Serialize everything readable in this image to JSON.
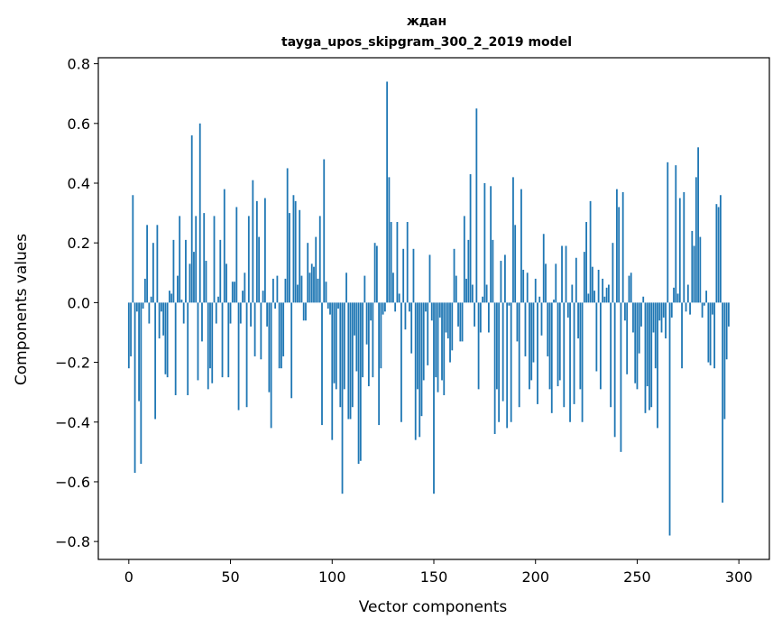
{
  "chart_data": {
    "type": "bar",
    "title": "ждан",
    "subtitle": "tayga_upos_skipgram_300_2_2019 model",
    "xlabel": "Vector components",
    "ylabel": "Components values",
    "xlim": [
      -15,
      315
    ],
    "ylim": [
      -0.86,
      0.82
    ],
    "xticks": [
      0,
      50,
      100,
      150,
      200,
      250,
      300
    ],
    "xtick_labels": [
      "0",
      "50",
      "100",
      "150",
      "200",
      "250",
      "300"
    ],
    "yticks": [
      -0.8,
      -0.6,
      -0.4,
      -0.2,
      0.0,
      0.2,
      0.4,
      0.6,
      0.8
    ],
    "ytick_labels": [
      "−0.8",
      "−0.6",
      "−0.4",
      "−0.2",
      "0.0",
      "0.2",
      "0.4",
      "0.6",
      "0.8"
    ],
    "bar_color": "#1f77b4",
    "series": [
      {
        "name": "ждан",
        "values": [
          -0.22,
          -0.18,
          0.36,
          -0.57,
          -0.03,
          -0.33,
          -0.54,
          -0.02,
          0.08,
          0.26,
          -0.07,
          0.02,
          0.2,
          -0.39,
          0.26,
          -0.12,
          -0.03,
          -0.11,
          -0.24,
          -0.25,
          0.04,
          0.03,
          0.21,
          -0.31,
          0.09,
          0.29,
          0.01,
          -0.07,
          0.21,
          -0.31,
          0.13,
          0.56,
          0.17,
          0.29,
          -0.26,
          0.6,
          -0.13,
          0.3,
          0.14,
          -0.29,
          -0.22,
          -0.27,
          0.29,
          -0.07,
          0.02,
          0.21,
          -0.25,
          0.38,
          0.13,
          -0.25,
          -0.07,
          0.07,
          0.07,
          0.32,
          -0.36,
          -0.07,
          0.04,
          0.1,
          -0.35,
          0.29,
          -0.08,
          0.41,
          -0.18,
          0.34,
          0.22,
          -0.19,
          0.04,
          0.35,
          -0.08,
          -0.3,
          -0.42,
          0.08,
          -0.02,
          0.09,
          -0.22,
          -0.22,
          -0.18,
          0.08,
          0.45,
          0.3,
          -0.32,
          0.36,
          0.34,
          0.06,
          0.31,
          0.09,
          -0.06,
          -0.06,
          0.2,
          0.1,
          0.13,
          0.12,
          0.22,
          0.08,
          0.29,
          -0.41,
          0.48,
          0.07,
          -0.02,
          -0.04,
          -0.46,
          -0.27,
          -0.29,
          -0.02,
          -0.35,
          -0.64,
          -0.29,
          0.1,
          -0.39,
          -0.39,
          -0.35,
          -0.11,
          -0.23,
          -0.54,
          -0.53,
          -0.25,
          0.09,
          -0.14,
          -0.28,
          -0.06,
          -0.25,
          0.2,
          0.19,
          -0.41,
          -0.22,
          -0.04,
          -0.03,
          0.74,
          0.42,
          0.27,
          0.1,
          -0.03,
          0.27,
          0.03,
          -0.4,
          0.18,
          -0.09,
          0.27,
          -0.03,
          -0.17,
          0.18,
          -0.46,
          -0.29,
          -0.45,
          -0.38,
          -0.26,
          -0.03,
          -0.21,
          0.16,
          -0.06,
          -0.64,
          -0.25,
          -0.3,
          -0.05,
          -0.26,
          -0.31,
          -0.1,
          -0.12,
          -0.2,
          -0.16,
          0.18,
          0.09,
          -0.08,
          -0.13,
          -0.13,
          0.29,
          0.08,
          0.21,
          0.43,
          0.06,
          -0.08,
          0.65,
          -0.29,
          -0.1,
          0.02,
          0.4,
          0.06,
          -0.1,
          0.39,
          0.21,
          -0.44,
          -0.29,
          -0.4,
          0.14,
          -0.33,
          0.16,
          -0.42,
          -0.01,
          -0.4,
          0.42,
          0.26,
          -0.13,
          -0.35,
          0.38,
          0.11,
          -0.18,
          0.1,
          -0.29,
          -0.26,
          -0.2,
          0.08,
          -0.34,
          0.02,
          -0.11,
          0.23,
          0.13,
          -0.18,
          -0.29,
          -0.37,
          0.01,
          0.13,
          -0.28,
          -0.26,
          0.19,
          -0.35,
          0.19,
          -0.05,
          -0.4,
          0.06,
          -0.34,
          0.15,
          -0.12,
          -0.29,
          -0.4,
          0.17,
          0.27,
          0.03,
          0.34,
          0.12,
          0.04,
          -0.23,
          0.11,
          -0.29,
          0.08,
          0.02,
          0.05,
          0.06,
          -0.35,
          0.2,
          -0.45,
          0.38,
          0.32,
          -0.5,
          0.37,
          -0.06,
          -0.24,
          0.09,
          0.1,
          -0.1,
          -0.27,
          -0.29,
          -0.17,
          -0.08,
          0.02,
          -0.37,
          -0.28,
          -0.36,
          -0.35,
          -0.1,
          -0.22,
          -0.42,
          -0.06,
          -0.1,
          -0.05,
          -0.12,
          0.47,
          -0.78,
          -0.05,
          0.05,
          0.46,
          0.03,
          0.35,
          -0.22,
          0.37,
          -0.03,
          0.06,
          -0.04,
          0.24,
          0.19,
          0.42,
          0.52,
          0.22,
          -0.05,
          -0.01,
          0.04,
          -0.2,
          -0.21,
          -0.04,
          -0.22,
          0.33,
          0.32,
          0.36,
          -0.67,
          -0.39,
          -0.19,
          -0.08
        ]
      }
    ]
  }
}
